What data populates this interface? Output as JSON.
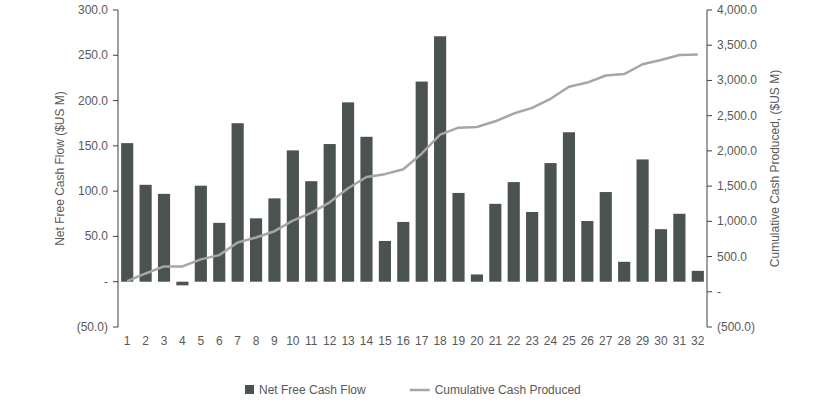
{
  "chart_data": {
    "type": "bar",
    "y_label": "Net Free Cash Flow ($US M)",
    "y2_label": "Cumulative Cash Produced, ($US M)",
    "categories": [
      "1",
      "2",
      "3",
      "4",
      "5",
      "6",
      "7",
      "8",
      "9",
      "10",
      "11",
      "12",
      "13",
      "14",
      "15",
      "16",
      "17",
      "18",
      "19",
      "20",
      "21",
      "22",
      "23",
      "24",
      "25",
      "26",
      "27",
      "28",
      "29",
      "30",
      "31",
      "32"
    ],
    "series": [
      {
        "name": "Net Free Cash Flow",
        "type": "bar",
        "color": "#4b534f",
        "values": [
          153,
          107,
          97,
          -4,
          106,
          65,
          175,
          70,
          92,
          145,
          111,
          152,
          198,
          160,
          45,
          66,
          221,
          271,
          98,
          8,
          86,
          110,
          77,
          131,
          165,
          67,
          99,
          22,
          135,
          58,
          75,
          12
        ]
      },
      {
        "name": "Cumulative Cash Produced",
        "type": "line",
        "color": "#a6a6a6",
        "axis": "y2",
        "values": [
          150,
          260,
          360,
          360,
          460,
          520,
          700,
          770,
          860,
          1010,
          1120,
          1270,
          1470,
          1630,
          1670,
          1740,
          1960,
          2230,
          2330,
          2340,
          2420,
          2530,
          2610,
          2740,
          2910,
          2970,
          3070,
          3090,
          3230,
          3290,
          3360,
          3370
        ]
      }
    ],
    "ylim": [
      -50,
      300
    ],
    "yticks": [
      {
        "value": -50,
        "label": "(50.0)"
      },
      {
        "value": 0,
        "label": "-"
      },
      {
        "value": 50,
        "label": "50.0"
      },
      {
        "value": 100,
        "label": "100.0"
      },
      {
        "value": 150,
        "label": "150.0"
      },
      {
        "value": 200,
        "label": "200.0"
      },
      {
        "value": 250,
        "label": "250.0"
      },
      {
        "value": 300,
        "label": "300.0"
      }
    ],
    "y2lim": [
      -500,
      4000
    ],
    "y2ticks": [
      {
        "value": -500,
        "label": "(500.0)"
      },
      {
        "value": 0,
        "label": "-"
      },
      {
        "value": 500,
        "label": "500.0"
      },
      {
        "value": 1000,
        "label": "1,000.0"
      },
      {
        "value": 1500,
        "label": "1,500.0"
      },
      {
        "value": 2000,
        "label": "2,000.0"
      },
      {
        "value": 2500,
        "label": "2,500.0"
      },
      {
        "value": 3000,
        "label": "3,000.0"
      },
      {
        "value": 3500,
        "label": "3,500.0"
      },
      {
        "value": 4000,
        "label": "4,000.0"
      }
    ],
    "grid": false,
    "legend": "bottom"
  }
}
